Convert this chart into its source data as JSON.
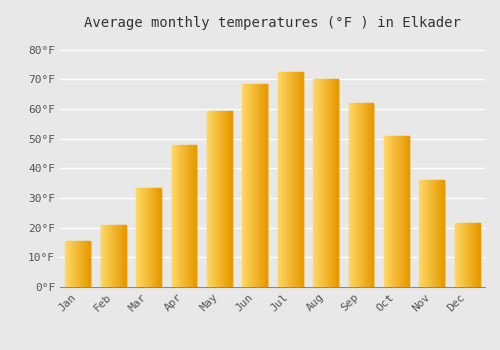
{
  "title": "Average monthly temperatures (°F ) in Elkader",
  "months": [
    "Jan",
    "Feb",
    "Mar",
    "Apr",
    "May",
    "Jun",
    "Jul",
    "Aug",
    "Sep",
    "Oct",
    "Nov",
    "Dec"
  ],
  "values": [
    15.5,
    21,
    33.5,
    48,
    59.5,
    68.5,
    72.5,
    70,
    62,
    51,
    36,
    21.5
  ],
  "bar_color_left": "#FFD966",
  "bar_color_right": "#E89B00",
  "bar_color_mid": "#FFC125",
  "ylim": [
    0,
    85
  ],
  "yticks": [
    0,
    10,
    20,
    30,
    40,
    50,
    60,
    70,
    80
  ],
  "ytick_labels": [
    "0°F",
    "10°F",
    "20°F",
    "30°F",
    "40°F",
    "50°F",
    "60°F",
    "70°F",
    "80°F"
  ],
  "background_color": "#e8e8e8",
  "plot_bg_color": "#e8e8e8",
  "grid_color": "#ffffff",
  "title_fontsize": 10,
  "tick_fontsize": 8,
  "bar_width": 0.7
}
